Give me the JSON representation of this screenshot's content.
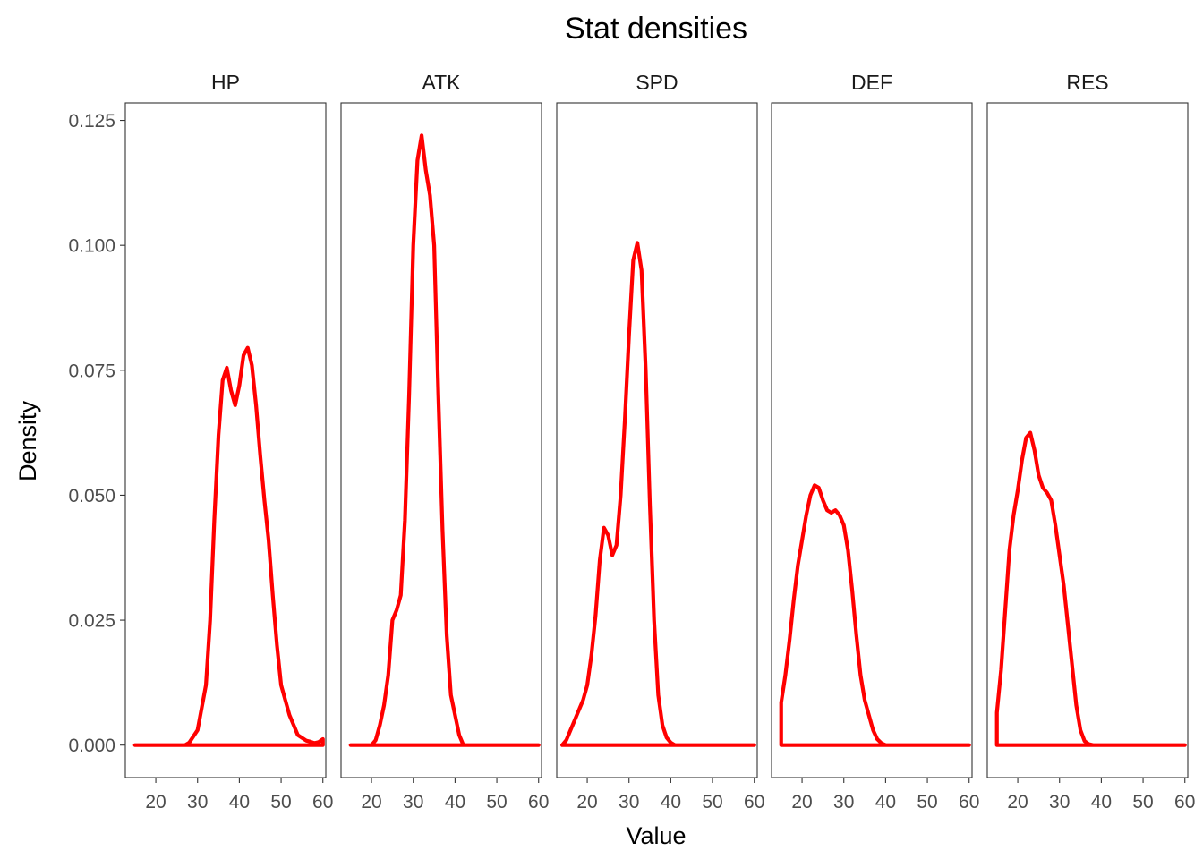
{
  "chart_data": {
    "type": "line",
    "title": "Stat densities",
    "xlabel": "Value",
    "ylabel": "Density",
    "xlim": [
      12.7,
      60.7
    ],
    "ylim": [
      -0.0065,
      0.1285
    ],
    "xticks": [
      20,
      30,
      40,
      50,
      60
    ],
    "yticks": [
      0.0,
      0.025,
      0.05,
      0.075,
      0.1,
      0.125
    ],
    "ytick_labels": [
      "0.000",
      "0.025",
      "0.050",
      "0.075",
      "0.100",
      "0.125"
    ],
    "line_color": "#ff0000",
    "grid": false,
    "legend": "none",
    "panels": [
      {
        "name": "HP",
        "points": [
          [
            15,
            0
          ],
          [
            27,
            0
          ],
          [
            28,
            0.0005
          ],
          [
            30,
            0.003
          ],
          [
            32,
            0.012
          ],
          [
            33,
            0.025
          ],
          [
            34,
            0.045
          ],
          [
            35,
            0.062
          ],
          [
            36,
            0.073
          ],
          [
            37,
            0.0755
          ],
          [
            38,
            0.071
          ],
          [
            39,
            0.068
          ],
          [
            40,
            0.072
          ],
          [
            41,
            0.078
          ],
          [
            42,
            0.0795
          ],
          [
            43,
            0.076
          ],
          [
            44,
            0.068
          ],
          [
            45,
            0.058
          ],
          [
            46,
            0.049
          ],
          [
            47,
            0.041
          ],
          [
            48,
            0.03
          ],
          [
            49,
            0.02
          ],
          [
            50,
            0.012
          ],
          [
            51,
            0.009
          ],
          [
            52,
            0.006
          ],
          [
            53,
            0.004
          ],
          [
            54,
            0.002
          ],
          [
            56,
            0.0009
          ],
          [
            57,
            0.0007
          ],
          [
            58,
            0.0004
          ],
          [
            59,
            0.0006
          ],
          [
            60,
            0.0012
          ],
          [
            60,
            0
          ],
          [
            15,
            0
          ]
        ]
      },
      {
        "name": "ATK",
        "points": [
          [
            15,
            0
          ],
          [
            20,
            0
          ],
          [
            21,
            0.001
          ],
          [
            22,
            0.004
          ],
          [
            23,
            0.008
          ],
          [
            24,
            0.014
          ],
          [
            25,
            0.025
          ],
          [
            26,
            0.027
          ],
          [
            27,
            0.03
          ],
          [
            28,
            0.045
          ],
          [
            29,
            0.07
          ],
          [
            30,
            0.1
          ],
          [
            31,
            0.117
          ],
          [
            32,
            0.122
          ],
          [
            33,
            0.115
          ],
          [
            34,
            0.11
          ],
          [
            35,
            0.1
          ],
          [
            36,
            0.07
          ],
          [
            37,
            0.043
          ],
          [
            38,
            0.022
          ],
          [
            39,
            0.01
          ],
          [
            40,
            0.006
          ],
          [
            41,
            0.002
          ],
          [
            42,
            0
          ],
          [
            60,
            0
          ],
          [
            15,
            0
          ]
        ]
      },
      {
        "name": "SPD",
        "points": [
          [
            14,
            0
          ],
          [
            15,
            0.001
          ],
          [
            16,
            0.003
          ],
          [
            17,
            0.005
          ],
          [
            18,
            0.007
          ],
          [
            19,
            0.009
          ],
          [
            20,
            0.012
          ],
          [
            21,
            0.018
          ],
          [
            22,
            0.026
          ],
          [
            23,
            0.037
          ],
          [
            24,
            0.0435
          ],
          [
            25,
            0.042
          ],
          [
            26,
            0.038
          ],
          [
            27,
            0.04
          ],
          [
            28,
            0.05
          ],
          [
            29,
            0.065
          ],
          [
            30,
            0.082
          ],
          [
            31,
            0.097
          ],
          [
            32,
            0.1005
          ],
          [
            33,
            0.095
          ],
          [
            34,
            0.075
          ],
          [
            35,
            0.048
          ],
          [
            36,
            0.025
          ],
          [
            37,
            0.01
          ],
          [
            38,
            0.004
          ],
          [
            39,
            0.0015
          ],
          [
            40,
            0.0005
          ],
          [
            41,
            0
          ],
          [
            60,
            0
          ],
          [
            14,
            0
          ]
        ]
      },
      {
        "name": "DEF",
        "points": [
          [
            15,
            0
          ],
          [
            15,
            0.0085
          ],
          [
            16,
            0.014
          ],
          [
            17,
            0.021
          ],
          [
            18,
            0.029
          ],
          [
            19,
            0.036
          ],
          [
            20,
            0.041
          ],
          [
            21,
            0.046
          ],
          [
            22,
            0.05
          ],
          [
            23,
            0.052
          ],
          [
            24,
            0.0515
          ],
          [
            25,
            0.049
          ],
          [
            26,
            0.047
          ],
          [
            27,
            0.0465
          ],
          [
            28,
            0.047
          ],
          [
            29,
            0.046
          ],
          [
            30,
            0.044
          ],
          [
            31,
            0.039
          ],
          [
            32,
            0.031
          ],
          [
            33,
            0.022
          ],
          [
            34,
            0.014
          ],
          [
            35,
            0.009
          ],
          [
            36,
            0.006
          ],
          [
            37,
            0.003
          ],
          [
            38,
            0.0012
          ],
          [
            39,
            0.0004
          ],
          [
            40,
            0
          ],
          [
            60,
            0
          ],
          [
            15,
            0
          ]
        ]
      },
      {
        "name": "RES",
        "points": [
          [
            15,
            0
          ],
          [
            15,
            0.0065
          ],
          [
            16,
            0.015
          ],
          [
            17,
            0.027
          ],
          [
            18,
            0.039
          ],
          [
            19,
            0.046
          ],
          [
            20,
            0.051
          ],
          [
            21,
            0.057
          ],
          [
            22,
            0.0615
          ],
          [
            23,
            0.0625
          ],
          [
            24,
            0.059
          ],
          [
            25,
            0.054
          ],
          [
            26,
            0.0515
          ],
          [
            27,
            0.0505
          ],
          [
            28,
            0.049
          ],
          [
            29,
            0.044
          ],
          [
            30,
            0.038
          ],
          [
            31,
            0.032
          ],
          [
            32,
            0.024
          ],
          [
            33,
            0.016
          ],
          [
            34,
            0.008
          ],
          [
            35,
            0.003
          ],
          [
            36,
            0.0008
          ],
          [
            37,
            0.0002
          ],
          [
            38,
            0
          ],
          [
            60,
            0
          ],
          [
            15,
            0
          ]
        ]
      }
    ]
  }
}
